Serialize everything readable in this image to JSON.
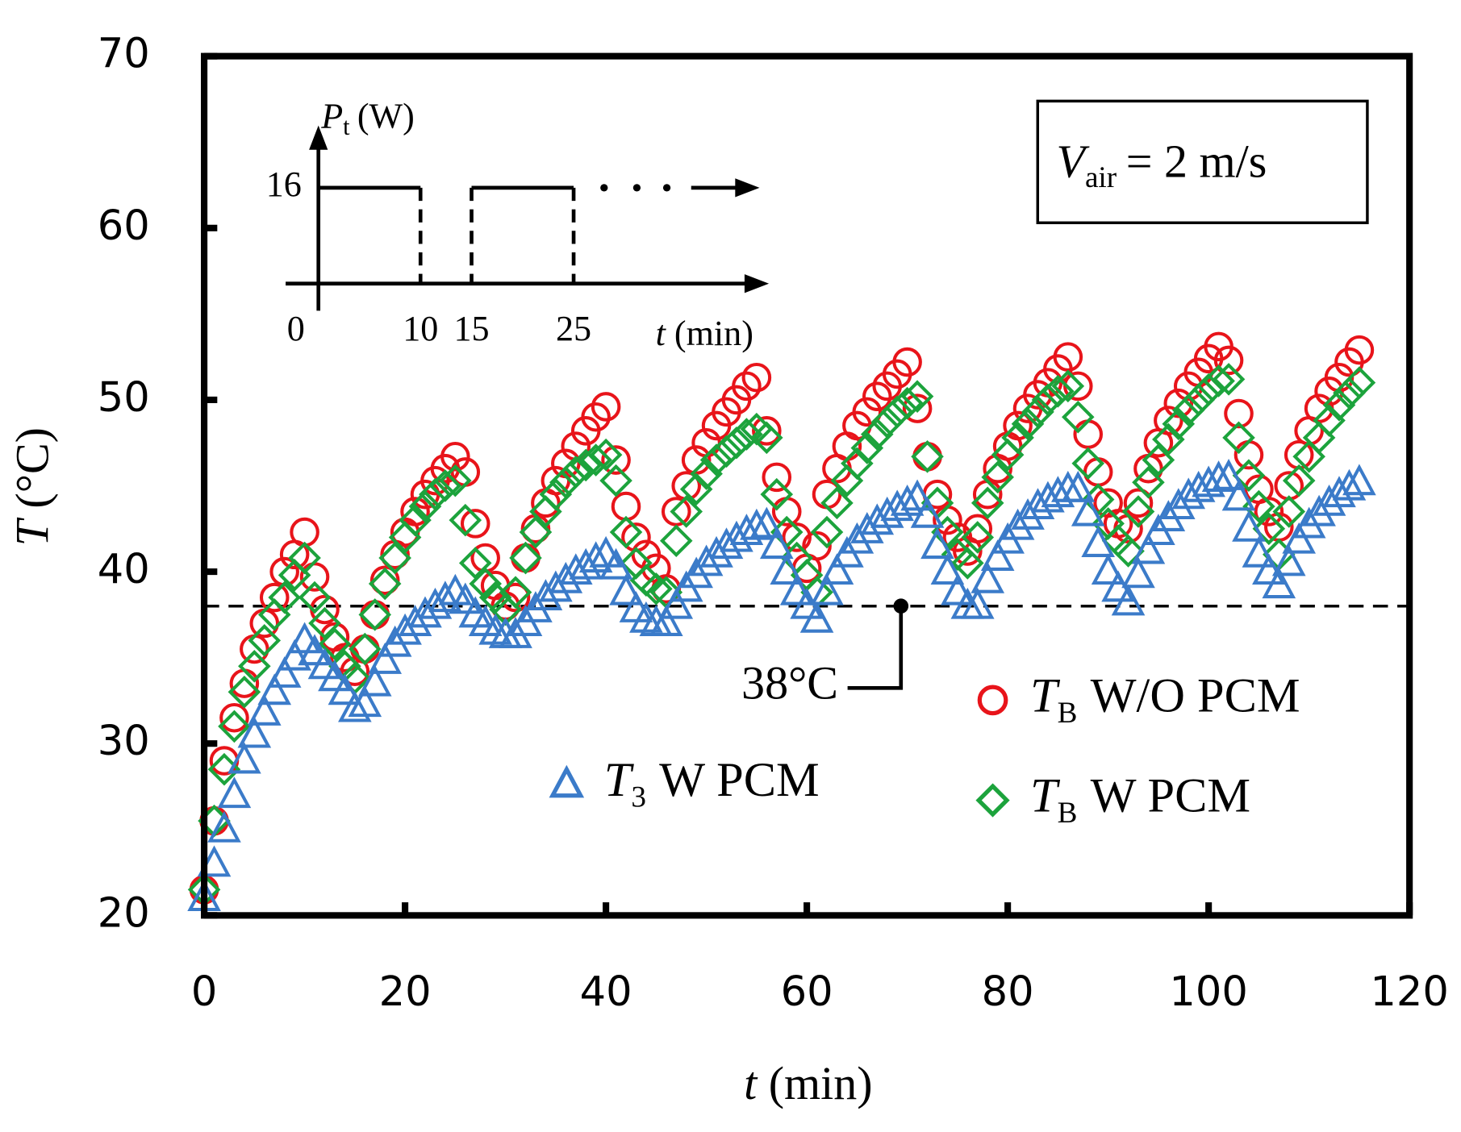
{
  "chart_data": {
    "type": "scatter",
    "x_label": {
      "symbol": "t",
      "unit": "(min)"
    },
    "y_label": {
      "symbol": "T",
      "unit": "(°C)"
    },
    "xlim": [
      0,
      120
    ],
    "xticks": [
      0,
      20,
      40,
      60,
      80,
      100,
      120
    ],
    "ylim": [
      20,
      70
    ],
    "yticks": [
      20,
      30,
      40,
      50,
      60,
      70
    ],
    "x": [
      0,
      1,
      2,
      3,
      4,
      5,
      6,
      7,
      8,
      9,
      10,
      11,
      12,
      13,
      14,
      15,
      16,
      17,
      18,
      19,
      20,
      21,
      22,
      23,
      24,
      25,
      26,
      27,
      28,
      29,
      30,
      31,
      32,
      33,
      34,
      35,
      36,
      37,
      38,
      39,
      40,
      41,
      42,
      43,
      44,
      45,
      46,
      47,
      48,
      49,
      50,
      51,
      52,
      53,
      54,
      55,
      56,
      57,
      58,
      59,
      60,
      61,
      62,
      63,
      64,
      65,
      66,
      67,
      68,
      69,
      70,
      71,
      72,
      73,
      74,
      75,
      76,
      77,
      78,
      79,
      80,
      81,
      82,
      83,
      84,
      85,
      86,
      87,
      88,
      89,
      90,
      91,
      92,
      93,
      94,
      95,
      96,
      97,
      98,
      99,
      100,
      101,
      102,
      103,
      104,
      105,
      106,
      107,
      108,
      109,
      110,
      111,
      112,
      113,
      114,
      115
    ],
    "series": [
      {
        "symbol": "T",
        "sub": "B",
        "name": "W/O PCM",
        "marker": "circle",
        "color": "#e8141a",
        "values": [
          21.5,
          25.5,
          29,
          31.5,
          33.5,
          35.5,
          37,
          38.5,
          40,
          41,
          42.3,
          39.7,
          37.8,
          36.2,
          35,
          34.2,
          35.5,
          37.5,
          39.5,
          41,
          42.3,
          43.5,
          44.5,
          45.3,
          46,
          46.7,
          45.8,
          42.8,
          40.8,
          39.2,
          38,
          38.5,
          40.8,
          42.5,
          44,
          45.3,
          46.3,
          47.3,
          48.2,
          49,
          49.6,
          46.5,
          43.8,
          42,
          41,
          40.2,
          39,
          43.5,
          45,
          46.5,
          47.5,
          48.5,
          49.3,
          50,
          50.8,
          51.3,
          48.2,
          45.5,
          43.5,
          42,
          40.2,
          41.5,
          44.5,
          46,
          47.3,
          48.5,
          49.3,
          50.2,
          50.8,
          51.5,
          52.2,
          49.5,
          46.7,
          44.5,
          43,
          42,
          41.2,
          42.5,
          44.5,
          46,
          47.3,
          48.5,
          49.5,
          50.3,
          51,
          51.8,
          52.5,
          50.8,
          48,
          45.8,
          44,
          42.8,
          42.5,
          44,
          46,
          47.5,
          48.8,
          49.8,
          50.8,
          51.6,
          52.4,
          53.1,
          52.3,
          49.2,
          46.8,
          44.8,
          43.5,
          42.6,
          45,
          46.8,
          48.2,
          49.5,
          50.5,
          51.3,
          52.2,
          52.9
        ]
      },
      {
        "symbol": "T",
        "sub": "B",
        "name": "W PCM",
        "marker": "diamond",
        "color": "#1ca33c",
        "values": [
          21.5,
          25.5,
          28.5,
          31,
          33,
          34.5,
          36,
          37.5,
          38.5,
          39.8,
          40.8,
          38.5,
          37,
          35.8,
          34.5,
          33.8,
          35.5,
          37.5,
          39.3,
          40.8,
          42,
          43,
          43.8,
          44.5,
          45,
          45.3,
          43,
          40.5,
          39.3,
          38.5,
          37.8,
          38.8,
          40.8,
          42.3,
          43.5,
          44.5,
          45.2,
          45.8,
          46.2,
          46.5,
          46.8,
          45.3,
          42.3,
          40.5,
          39.5,
          39,
          38.8,
          41.8,
          43.5,
          44.8,
          45.7,
          46.5,
          47,
          47.5,
          48,
          48.3,
          47.8,
          44.5,
          42.3,
          40.8,
          39.8,
          38.8,
          42.3,
          44,
          45.3,
          46.3,
          47.2,
          48,
          48.7,
          49.3,
          49.8,
          50.2,
          46.7,
          44,
          42.3,
          41,
          40.5,
          42,
          44,
          45.5,
          46.8,
          47.8,
          48.6,
          49.3,
          50,
          50.5,
          50.8,
          49,
          46.3,
          44.2,
          42.8,
          41.8,
          41.2,
          43.5,
          45.2,
          46.5,
          47.7,
          48.6,
          49.4,
          50,
          50.6,
          51.1,
          51.2,
          47.8,
          45.6,
          43.8,
          42.5,
          41,
          43.5,
          45.3,
          46.7,
          47.8,
          48.8,
          49.7,
          50.4,
          51
        ]
      },
      {
        "symbol": "T",
        "sub": "3",
        "name": "W PCM",
        "marker": "triangle",
        "color": "#3b7bc9",
        "values": [
          21,
          23,
          25,
          27,
          29,
          30.5,
          31.8,
          33,
          34,
          35,
          36,
          35.3,
          34.5,
          33.8,
          33,
          32,
          32.3,
          33.5,
          34.8,
          35.8,
          36.5,
          37,
          37.5,
          38,
          38.4,
          38.8,
          38.3,
          37.5,
          37,
          36.5,
          36.3,
          36.3,
          37,
          37.8,
          38.5,
          39,
          39.5,
          40,
          40.3,
          40.7,
          41,
          40.3,
          38.8,
          37.8,
          37.2,
          37,
          37,
          38,
          39,
          39.8,
          40.5,
          41,
          41.5,
          41.9,
          42.3,
          42.6,
          42.7,
          41.5,
          40,
          38.8,
          38,
          37.2,
          38.8,
          40,
          41,
          41.8,
          42.4,
          42.9,
          43.3,
          43.7,
          44,
          44.3,
          43.3,
          41.5,
          40,
          38.8,
          38,
          38,
          39.5,
          40.8,
          41.8,
          42.6,
          43.2,
          43.8,
          44.2,
          44.5,
          44.8,
          44.8,
          43.4,
          41.6,
          40,
          39,
          38.2,
          39.8,
          41.2,
          42.3,
          43.1,
          43.8,
          44.4,
          44.8,
          45.1,
          45.4,
          45.5,
          44.3,
          42.5,
          41,
          40,
          39.2,
          40.5,
          41.8,
          42.7,
          43.4,
          44,
          44.5,
          44.9,
          45.2
        ]
      }
    ],
    "threshold": {
      "value": 38,
      "label": "38°C"
    },
    "annotation": {
      "symbol": "V",
      "sub": "air",
      "text": "= 2 m/s"
    },
    "inset": {
      "y_label": {
        "symbol": "P",
        "sub": "t",
        "unit": "(W)"
      },
      "power": 16,
      "xticks": [
        0,
        10,
        15,
        25
      ],
      "x_label": {
        "symbol": "t",
        "unit": "(min)"
      }
    }
  }
}
